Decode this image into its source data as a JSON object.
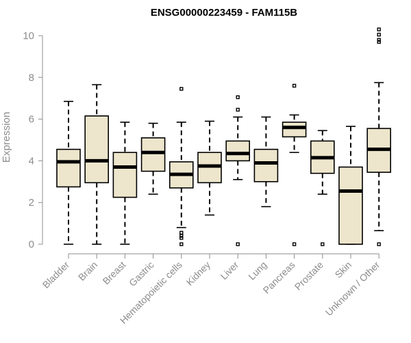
{
  "chart_data": {
    "type": "boxplot",
    "title": "ENSG00000223459 - FAM115B",
    "xlabel": "",
    "ylabel": "Expression",
    "ylim": [
      0,
      10.5
    ],
    "yticks": [
      0,
      2,
      4,
      6,
      8,
      10
    ],
    "box_color": "#ede6cc",
    "categories": [
      "Bladder",
      "Brain",
      "Breast",
      "Gastric",
      "Hematopoietic cells",
      "Kidney",
      "Liver",
      "Lung",
      "Pancreas",
      "Prostate",
      "Skin",
      "Unknown / Other"
    ],
    "boxes": [
      {
        "min": 0,
        "q1": 2.75,
        "median": 3.95,
        "q3": 4.55,
        "max": 6.85,
        "outliers": []
      },
      {
        "min": 0,
        "q1": 2.95,
        "median": 4.0,
        "q3": 6.15,
        "max": 7.65,
        "outliers": []
      },
      {
        "min": 0,
        "q1": 2.25,
        "median": 3.7,
        "q3": 4.4,
        "max": 5.85,
        "outliers": []
      },
      {
        "min": 2.4,
        "q1": 3.5,
        "median": 4.4,
        "q3": 5.1,
        "max": 5.8,
        "outliers": []
      },
      {
        "min": 0.8,
        "q1": 2.7,
        "median": 3.35,
        "q3": 3.95,
        "max": 5.85,
        "outliers": [
          7.45,
          0.55,
          0.4,
          0.3,
          0
        ]
      },
      {
        "min": 1.4,
        "q1": 2.95,
        "median": 3.75,
        "q3": 4.4,
        "max": 5.9,
        "outliers": []
      },
      {
        "min": 3.1,
        "q1": 4.0,
        "median": 4.35,
        "q3": 4.95,
        "max": 6.1,
        "outliers": [
          7.05,
          6.45,
          0
        ]
      },
      {
        "min": 1.8,
        "q1": 3.0,
        "median": 3.9,
        "q3": 4.55,
        "max": 6.1,
        "outliers": []
      },
      {
        "min": 4.4,
        "q1": 5.15,
        "median": 5.6,
        "q3": 5.85,
        "max": 6.2,
        "outliers": [
          7.6,
          0
        ]
      },
      {
        "min": 2.4,
        "q1": 3.4,
        "median": 4.15,
        "q3": 4.95,
        "max": 5.45,
        "outliers": [
          0
        ]
      },
      {
        "min": 0,
        "q1": 0,
        "median": 2.55,
        "q3": 3.7,
        "max": 5.65,
        "outliers": []
      },
      {
        "min": 0.65,
        "q1": 3.45,
        "median": 4.55,
        "q3": 5.55,
        "max": 7.75,
        "outliers": [
          10.3,
          10.05,
          9.8,
          9.7,
          0
        ]
      }
    ]
  }
}
